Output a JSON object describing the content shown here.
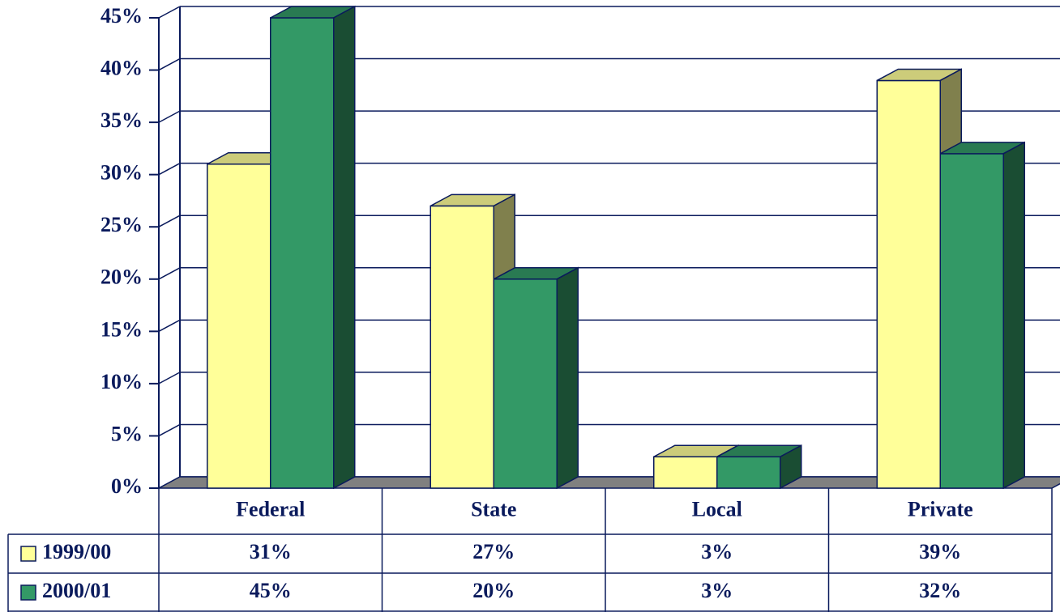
{
  "chart_data": {
    "type": "bar",
    "categories": [
      "Federal",
      "State",
      "Local",
      "Private"
    ],
    "series": [
      {
        "name": "1999/00",
        "color": "#ffff99",
        "values": [
          31,
          27,
          3,
          39
        ],
        "value_labels": [
          "31%",
          "27%",
          "3%",
          "39%"
        ]
      },
      {
        "name": "2000/01",
        "color": "#339966",
        "values": [
          45,
          20,
          3,
          32
        ],
        "value_labels": [
          "45%",
          "20%",
          "3%",
          "32%"
        ]
      }
    ],
    "ylim": [
      0,
      45
    ],
    "yticks": [
      {
        "value": 0,
        "label": "0%"
      },
      {
        "value": 5,
        "label": "5%"
      },
      {
        "value": 10,
        "label": "10%"
      },
      {
        "value": 15,
        "label": "15%"
      },
      {
        "value": 20,
        "label": "20%"
      },
      {
        "value": 25,
        "label": "25%"
      },
      {
        "value": 30,
        "label": "30%"
      },
      {
        "value": 35,
        "label": "35%"
      },
      {
        "value": 40,
        "label": "40%"
      },
      {
        "value": 45,
        "label": "45%"
      }
    ],
    "grid": true
  }
}
